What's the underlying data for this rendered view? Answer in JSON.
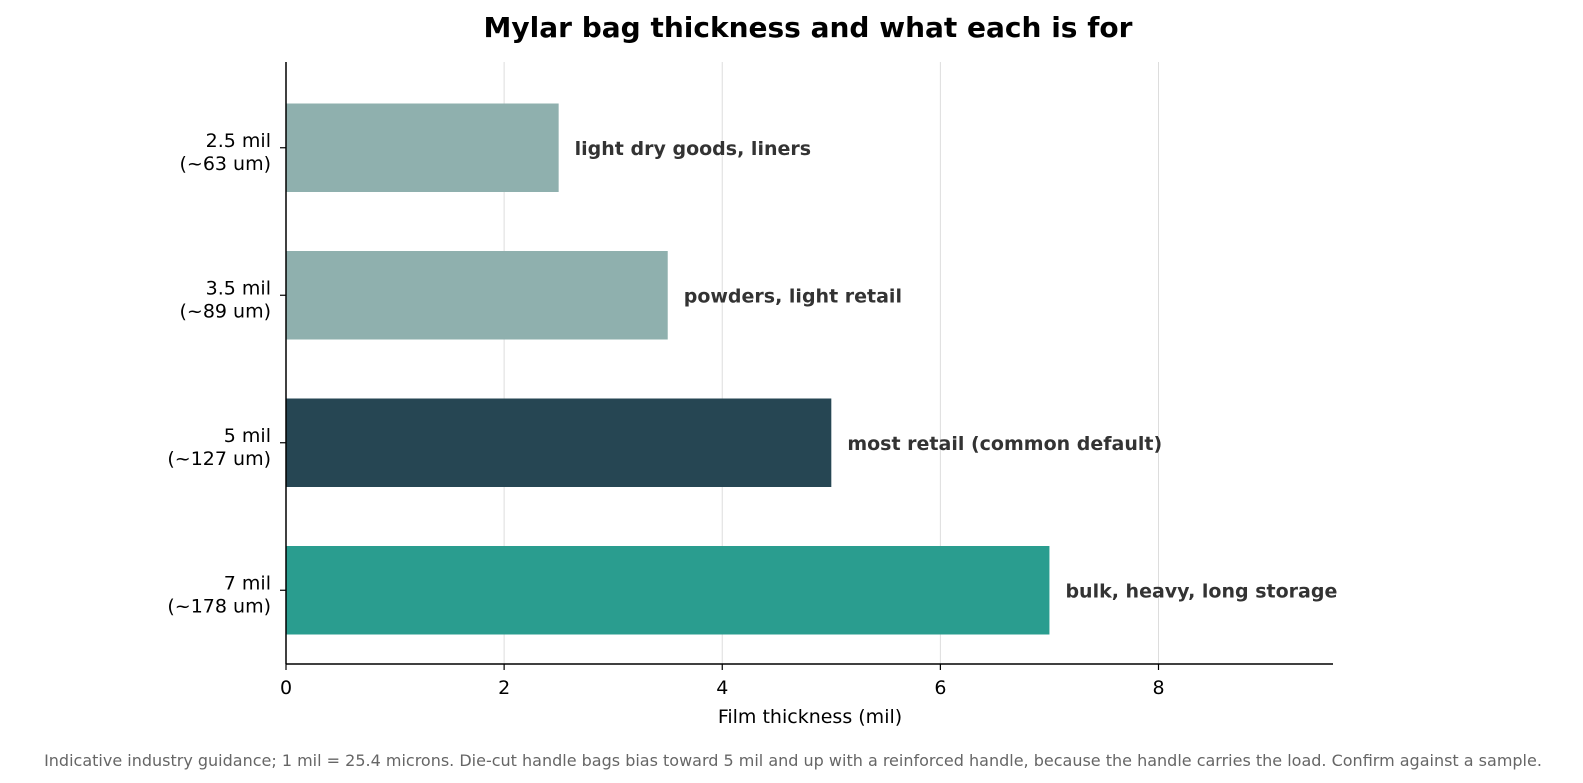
{
  "chart_data": {
    "type": "bar",
    "orientation": "horizontal",
    "title": "Mylar bag thickness and what each is for",
    "xlabel": "Film thickness (mil)",
    "ylabel": "",
    "xlim": [
      0,
      9.6
    ],
    "xticks": [
      0,
      2,
      4,
      6,
      8
    ],
    "grid": "vertical",
    "categories": [
      [
        "2.5 mil",
        "(~63 um)"
      ],
      [
        "3.5 mil",
        "(~89 um)"
      ],
      [
        "5 mil",
        "(~127 um)"
      ],
      [
        "7 mil",
        "(~178 um)"
      ]
    ],
    "values": [
      2.5,
      3.5,
      5,
      7
    ],
    "annotations": [
      "light dry goods, liners",
      "powders, light retail",
      "most retail (common default)",
      "bulk, heavy, long storage"
    ],
    "colors": [
      "#8fb0ae",
      "#8fb0ae",
      "#264653",
      "#2a9d8f"
    ],
    "footnote": "Indicative industry guidance; 1 mil = 25.4 microns. Die-cut handle bags bias toward 5 mil and up with a reinforced handle, because the handle carries the load. Confirm against a sample."
  }
}
